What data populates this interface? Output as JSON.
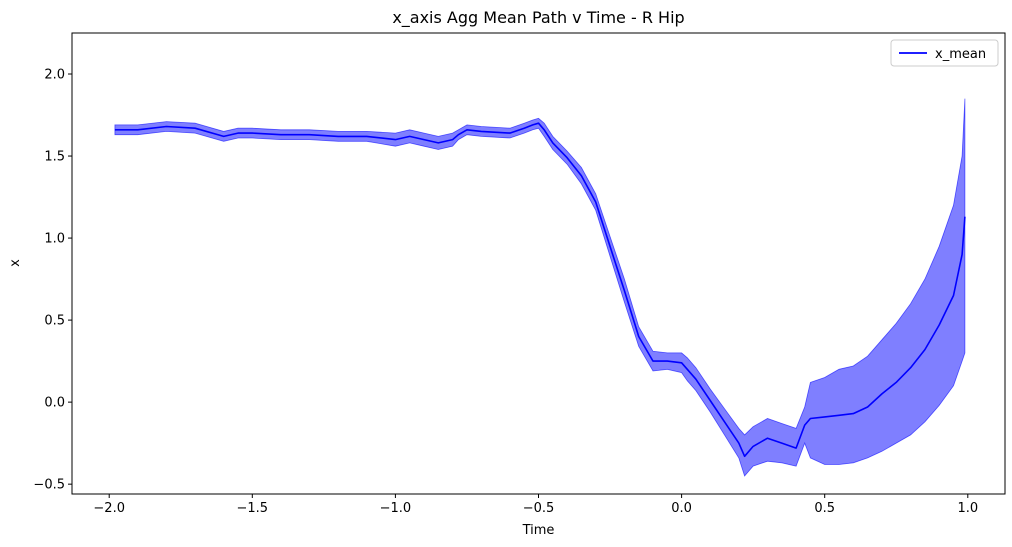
{
  "chart_data": {
    "type": "line",
    "title": "x_axis Agg Mean Path v Time - R Hip",
    "xlabel": "Time",
    "ylabel": "x",
    "xlim": [
      -2.13,
      1.13
    ],
    "ylim": [
      -0.56,
      2.25
    ],
    "xticks": [
      -2.0,
      -1.5,
      -1.0,
      -0.5,
      0.0,
      0.5,
      1.0
    ],
    "xtick_labels": [
      "−2.0",
      "−1.5",
      "−1.0",
      "−0.5",
      "0.0",
      "0.5",
      "1.0"
    ],
    "yticks": [
      -0.5,
      0.0,
      0.5,
      1.0,
      1.5,
      2.0
    ],
    "ytick_labels": [
      "−0.5",
      "0.0",
      "0.5",
      "1.0",
      "1.5",
      "2.0"
    ],
    "grid": false,
    "legend_position": "top-right",
    "colors": {
      "line": "#0000ff",
      "band": "#0000ff"
    },
    "series": [
      {
        "name": "x_mean",
        "x": [
          -1.98,
          -1.9,
          -1.8,
          -1.7,
          -1.6,
          -1.55,
          -1.5,
          -1.4,
          -1.3,
          -1.2,
          -1.1,
          -1.0,
          -0.95,
          -0.9,
          -0.85,
          -0.8,
          -0.78,
          -0.75,
          -0.7,
          -0.6,
          -0.55,
          -0.52,
          -0.5,
          -0.48,
          -0.45,
          -0.4,
          -0.35,
          -0.3,
          -0.25,
          -0.2,
          -0.15,
          -0.1,
          -0.05,
          0.0,
          0.02,
          0.05,
          0.1,
          0.15,
          0.2,
          0.22,
          0.25,
          0.3,
          0.35,
          0.4,
          0.43,
          0.45,
          0.5,
          0.55,
          0.6,
          0.65,
          0.7,
          0.75,
          0.8,
          0.85,
          0.9,
          0.95,
          0.98,
          0.99
        ],
        "y": [
          1.66,
          1.66,
          1.68,
          1.67,
          1.62,
          1.64,
          1.64,
          1.63,
          1.63,
          1.62,
          1.62,
          1.6,
          1.62,
          1.6,
          1.58,
          1.6,
          1.63,
          1.66,
          1.65,
          1.64,
          1.67,
          1.69,
          1.7,
          1.66,
          1.58,
          1.49,
          1.38,
          1.22,
          0.95,
          0.68,
          0.4,
          0.25,
          0.25,
          0.24,
          0.2,
          0.14,
          0.01,
          -0.12,
          -0.25,
          -0.33,
          -0.27,
          -0.22,
          -0.25,
          -0.28,
          -0.14,
          -0.1,
          -0.09,
          -0.08,
          -0.07,
          -0.03,
          0.05,
          0.12,
          0.21,
          0.32,
          0.47,
          0.65,
          0.9,
          1.13
        ],
        "band_lower": [
          1.63,
          1.63,
          1.65,
          1.64,
          1.59,
          1.61,
          1.61,
          1.6,
          1.6,
          1.59,
          1.59,
          1.56,
          1.58,
          1.56,
          1.54,
          1.56,
          1.6,
          1.63,
          1.62,
          1.61,
          1.64,
          1.66,
          1.67,
          1.62,
          1.54,
          1.45,
          1.33,
          1.17,
          0.89,
          0.61,
          0.34,
          0.19,
          0.2,
          0.18,
          0.13,
          0.07,
          -0.06,
          -0.2,
          -0.34,
          -0.45,
          -0.39,
          -0.36,
          -0.37,
          -0.39,
          -0.25,
          -0.34,
          -0.38,
          -0.38,
          -0.37,
          -0.34,
          -0.3,
          -0.25,
          -0.2,
          -0.12,
          -0.02,
          0.1,
          0.25,
          0.3
        ],
        "band_upper": [
          1.69,
          1.69,
          1.71,
          1.7,
          1.65,
          1.67,
          1.67,
          1.66,
          1.66,
          1.65,
          1.65,
          1.64,
          1.66,
          1.64,
          1.62,
          1.64,
          1.66,
          1.69,
          1.68,
          1.67,
          1.7,
          1.72,
          1.73,
          1.7,
          1.62,
          1.53,
          1.43,
          1.27,
          1.01,
          0.75,
          0.46,
          0.31,
          0.3,
          0.3,
          0.27,
          0.21,
          0.08,
          -0.04,
          -0.16,
          -0.2,
          -0.15,
          -0.1,
          -0.13,
          -0.16,
          -0.03,
          0.12,
          0.15,
          0.2,
          0.22,
          0.28,
          0.38,
          0.48,
          0.6,
          0.75,
          0.95,
          1.2,
          1.5,
          1.85
        ]
      }
    ]
  }
}
